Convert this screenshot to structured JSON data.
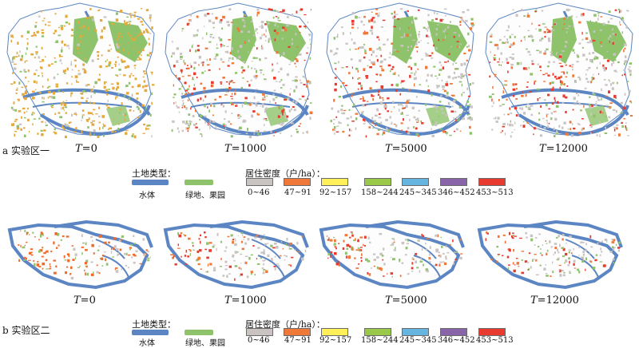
{
  "colors": {
    "water": "#5b86c3",
    "green": "#8ec26b",
    "d0": "#c9c4c2",
    "d1": "#f07838",
    "d2": "#ffef59",
    "d3": "#9ac94a",
    "d4": "#66b4e0",
    "d5": "#8a64a8",
    "d6": "#e83a2e",
    "init_a": "#e4a93a",
    "init_b": "#f06a2a"
  },
  "panel_a": {
    "label": "a 实验区一",
    "times": [
      {
        "t": "T",
        "eq": "=0"
      },
      {
        "t": "T",
        "eq": "=1000"
      },
      {
        "t": "T",
        "eq": "=5000"
      },
      {
        "t": "T",
        "eq": "=12000"
      }
    ]
  },
  "panel_b": {
    "label": "b 实验区二",
    "times": [
      {
        "t": "T",
        "eq": "=0"
      },
      {
        "t": "T",
        "eq": "=1000"
      },
      {
        "t": "T",
        "eq": "=5000"
      },
      {
        "t": "T",
        "eq": "=12000"
      }
    ]
  },
  "legend": {
    "land_title": "土地类型：",
    "water_label": "水体",
    "green_label": "绿地、果园",
    "density_title": "居住密度（户/ha）：",
    "classes": [
      "0~46",
      "47~91",
      "92~157",
      "158~244",
      "245~345",
      "346~452",
      "453~513"
    ]
  }
}
